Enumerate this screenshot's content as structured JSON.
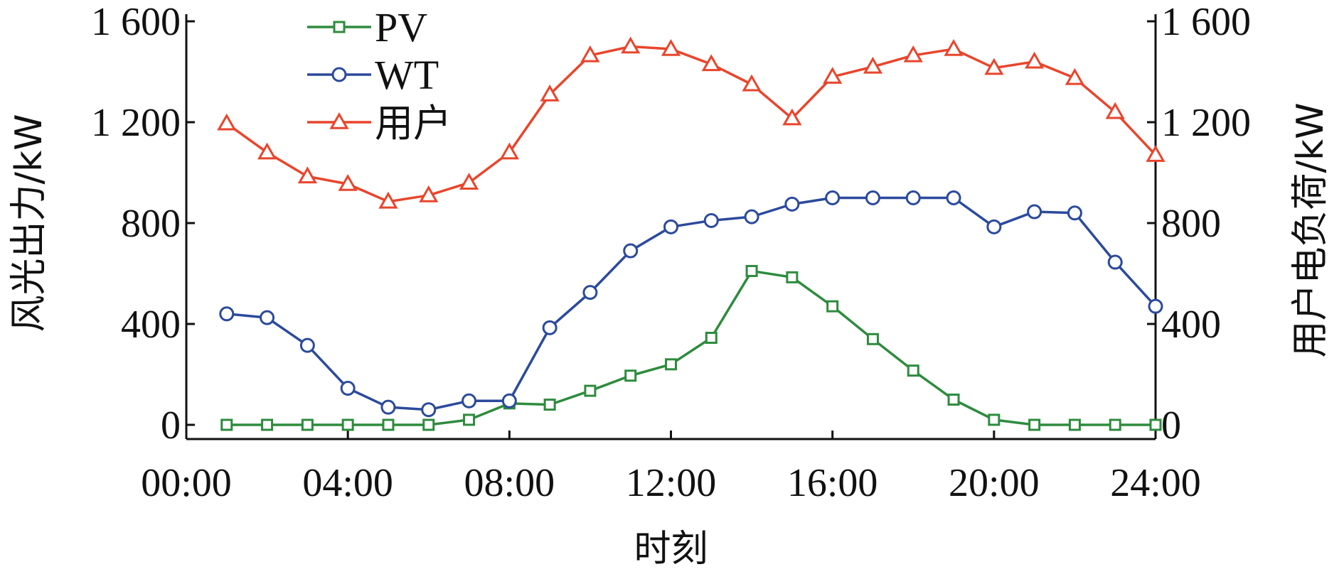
{
  "chart_data": {
    "type": "line",
    "xlabel": "时刻",
    "ylabel_left": "风光出力/kW",
    "ylabel_right": "用户电负荷/kW",
    "x_ticks": [
      "00:00",
      "04:00",
      "08:00",
      "12:00",
      "16:00",
      "20:00",
      "24:00"
    ],
    "y_ticks": [
      "0",
      "400",
      "800",
      "1 200",
      "1 600"
    ],
    "y_tick_values": [
      0,
      400,
      800,
      1200,
      1600
    ],
    "xlim": [
      0,
      24
    ],
    "ylim_left": [
      0,
      1600
    ],
    "ylim_right": [
      0,
      1600
    ],
    "legend_position": "top-left",
    "x": [
      1,
      2,
      3,
      4,
      5,
      6,
      7,
      8,
      9,
      10,
      11,
      12,
      13,
      14,
      15,
      16,
      17,
      18,
      19,
      20,
      21,
      22,
      23,
      24
    ],
    "series": [
      {
        "name": "PV",
        "color": "#2e8b3e",
        "marker": "square",
        "axis": "left",
        "values": [
          0,
          0,
          0,
          0,
          0,
          0,
          20,
          85,
          80,
          135,
          195,
          240,
          345,
          610,
          585,
          470,
          340,
          215,
          100,
          20,
          0,
          0,
          0,
          0
        ]
      },
      {
        "name": "WT",
        "color": "#2b4a9c",
        "marker": "circle",
        "axis": "left",
        "values": [
          440,
          425,
          315,
          145,
          70,
          60,
          95,
          95,
          385,
          525,
          690,
          785,
          810,
          825,
          875,
          900,
          900,
          900,
          900,
          785,
          845,
          840,
          645,
          470
        ]
      },
      {
        "name": "用户",
        "color": "#e8452c",
        "marker": "triangle",
        "axis": "right",
        "values": [
          1195,
          1080,
          985,
          955,
          885,
          910,
          960,
          1080,
          1310,
          1465,
          1500,
          1490,
          1430,
          1350,
          1215,
          1380,
          1420,
          1465,
          1490,
          1415,
          1440,
          1375,
          1240,
          1070
        ]
      }
    ]
  }
}
